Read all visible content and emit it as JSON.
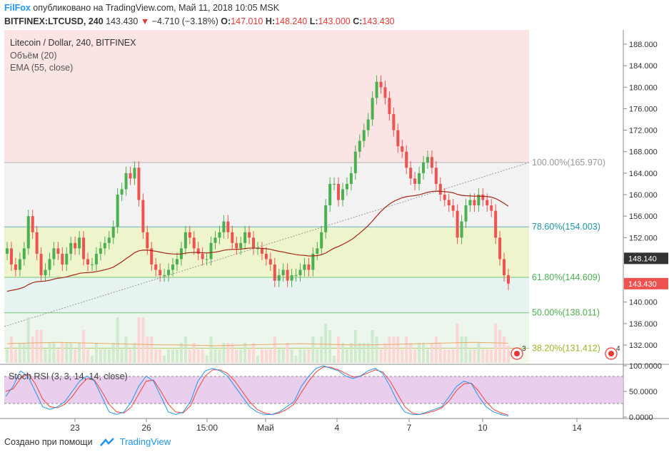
{
  "header": {
    "author": "FilFox",
    "published": "опубликовано на TradingView.com, Май 11, 2018 10:05 MSK",
    "symbol": "BITFINEX:LTCUSD, 240",
    "last": "143.430",
    "change": "−4.710 (−3.18%)",
    "o_label": "O:",
    "o": "147.010",
    "h_label": "H:",
    "h": "148.240",
    "l_label": "L:",
    "l": "143.000",
    "c_label": "C:",
    "c": "143.430"
  },
  "legend": {
    "title": "Litecoin / Dollar, 240, BITFINEX",
    "volume": "Объём (20)",
    "ema": "EMA (55, close)",
    "stoch": "Stoch RSI (3, 3, 14, 14, close)"
  },
  "footer": {
    "created": "Создано при помощи",
    "brand": "TradingView"
  },
  "colors": {
    "up": "#4caf50",
    "down": "#ef5350",
    "ema": "#a52714",
    "stoch_k": "#2196f3",
    "stoch_d": "#f44336",
    "stoch_band": "#e1bee7"
  },
  "chart_data": {
    "type": "candlestick",
    "price_axis": {
      "min": 128,
      "max": 190,
      "ticks": [
        "188.000",
        "184.000",
        "180.000",
        "176.000",
        "172.000",
        "168.000",
        "164.000",
        "160.000",
        "156.000",
        "152.000",
        "148.000",
        "144.000",
        "140.000",
        "136.000",
        "132.000"
      ]
    },
    "time_axis": {
      "labels": [
        "23",
        "26",
        "15:00",
        "Май",
        "4",
        "7",
        "10",
        "14"
      ]
    },
    "price_labels": [
      {
        "value": 148.14,
        "text": "148.140",
        "color": "#333333"
      },
      {
        "value": 143.43,
        "text": "143.430",
        "color": "#ef5350"
      }
    ],
    "fib_levels": [
      {
        "label": "100.00%(165.970)",
        "value": 165.97,
        "color": "#999999"
      },
      {
        "label": "78.60%(154.003)",
        "value": 154.003,
        "color": "#2196a8"
      },
      {
        "label": "61.80%(144.609)",
        "value": 144.609,
        "color": "#4caf50"
      },
      {
        "label": "50.00%(138.011)",
        "value": 138.011,
        "color": "#4caf50"
      },
      {
        "label": "38.20%(131.412)",
        "value": 131.412,
        "color": "#9ab82a"
      }
    ],
    "badges": [
      "3",
      "4"
    ],
    "closes": [
      150,
      147,
      146,
      148,
      150,
      156,
      153,
      149,
      145,
      146,
      148,
      150,
      149,
      147,
      149,
      151,
      150,
      152,
      148,
      147,
      147,
      149,
      150,
      151,
      152,
      154,
      160,
      161,
      164,
      163,
      165,
      159,
      153,
      150,
      147,
      146,
      145,
      145,
      146,
      147,
      148,
      150,
      153,
      152,
      150,
      149,
      148,
      148,
      151,
      152,
      153,
      155,
      153,
      151,
      150,
      151,
      153,
      152,
      150,
      150,
      149,
      148,
      147,
      144,
      145,
      146,
      144,
      145,
      145,
      146,
      147,
      146,
      149,
      150,
      153,
      158,
      162,
      162,
      159,
      161,
      162,
      164,
      168,
      170,
      172,
      174,
      178,
      181,
      180,
      178,
      175,
      172,
      169,
      168,
      165,
      163,
      162,
      164,
      166,
      167,
      165,
      162,
      160,
      159,
      158,
      157,
      152,
      155,
      158,
      159,
      158,
      160,
      159,
      158,
      157,
      152,
      148,
      145,
      143.43
    ],
    "volume_ma": [
      0.45,
      0.46,
      0.47,
      0.48,
      0.47,
      0.46,
      0.45,
      0.44,
      0.43,
      0.42,
      0.42,
      0.41,
      0.4,
      0.41,
      0.42,
      0.43,
      0.44,
      0.45,
      0.44,
      0.43,
      0.42,
      0.42,
      0.43,
      0.44,
      0.45,
      0.46,
      0.47,
      0.48,
      0.47,
      0.46
    ],
    "stoch_rsi": {
      "range": [
        0,
        100
      ],
      "ticks": [
        "100.0000",
        "50.0000",
        "0.0000"
      ],
      "bands": [
        80,
        20
      ],
      "k": [
        40,
        60,
        90,
        80,
        50,
        20,
        15,
        20,
        30,
        50,
        70,
        80,
        70,
        40,
        10,
        5,
        10,
        30,
        60,
        80,
        70,
        40,
        10,
        5,
        10,
        30,
        70,
        90,
        95,
        90,
        80,
        60,
        40,
        20,
        10,
        5,
        5,
        10,
        20,
        30,
        60,
        80,
        95,
        100,
        95,
        90,
        80,
        75,
        80,
        90,
        95,
        85,
        60,
        30,
        10,
        5,
        5,
        10,
        15,
        20,
        40,
        60,
        70,
        65,
        40,
        20,
        10,
        5,
        2
      ],
      "d": [
        50,
        55,
        75,
        85,
        65,
        35,
        20,
        18,
        25,
        40,
        60,
        75,
        72,
        50,
        25,
        10,
        8,
        20,
        45,
        70,
        72,
        50,
        25,
        10,
        8,
        22,
        55,
        80,
        92,
        92,
        85,
        70,
        50,
        30,
        15,
        8,
        5,
        8,
        15,
        25,
        48,
        70,
        88,
        98,
        97,
        92,
        85,
        78,
        80,
        86,
        92,
        88,
        70,
        45,
        20,
        8,
        5,
        8,
        12,
        18,
        32,
        52,
        65,
        66,
        50,
        30,
        15,
        8,
        4
      ]
    }
  }
}
